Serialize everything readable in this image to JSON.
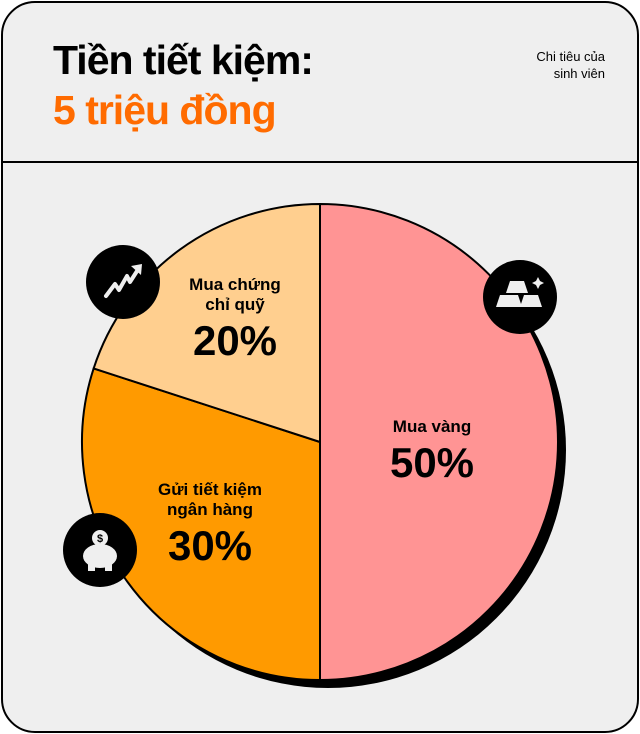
{
  "header": {
    "title_line1": "Tiền tiết kiệm:",
    "title_line2": "5 triệu đồng",
    "subtitle_line1": "Chi tiêu của",
    "subtitle_line2": "sinh viên"
  },
  "chart_data": {
    "type": "pie",
    "title": "Tiền tiết kiệm: 5 triệu đồng",
    "slices": [
      {
        "label_lines": [
          "Mua vàng"
        ],
        "value": 50,
        "value_label": "50%",
        "color": "#ff9494",
        "icon": "gold-bars-icon"
      },
      {
        "label_lines": [
          "Gửi tiết kiệm",
          "ngân hàng"
        ],
        "value": 30,
        "value_label": "30%",
        "color": "#ff9a00",
        "icon": "piggy-bank-icon"
      },
      {
        "label_lines": [
          "Mua chứng",
          "chỉ quỹ"
        ],
        "value": 20,
        "value_label": "20%",
        "color": "#ffcf8f",
        "icon": "trend-up-icon"
      }
    ]
  }
}
